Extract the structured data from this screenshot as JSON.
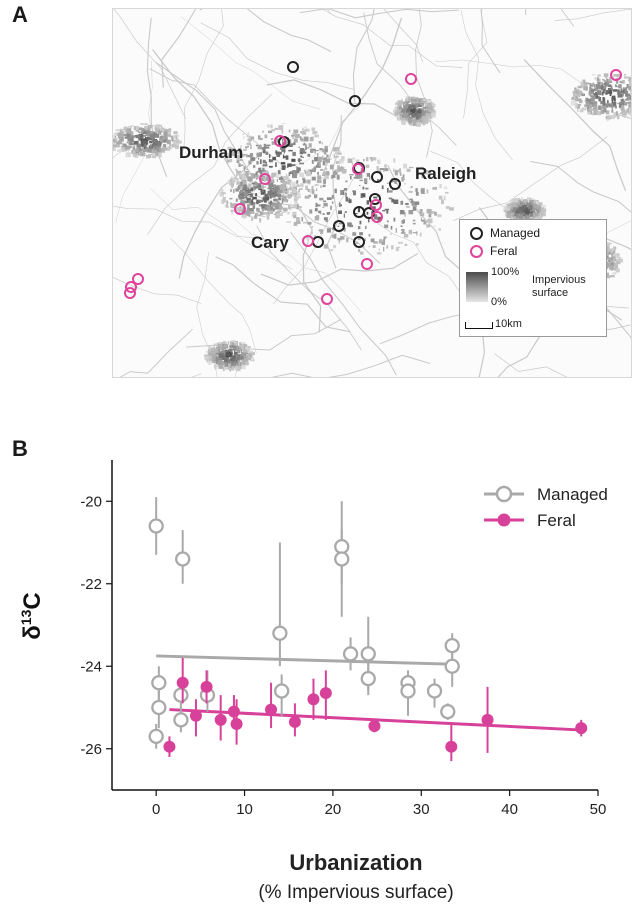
{
  "panel_a": {
    "letter": "A",
    "cities": {
      "durham": "Durham",
      "raleigh": "Raleigh",
      "cary": "Cary"
    },
    "legend": {
      "managed": "Managed",
      "feral": "Feral",
      "scale_top": "100%",
      "scale_bottom": "0%",
      "scale_label_1": "Impervious",
      "scale_label_2": "surface",
      "distance": "10km"
    },
    "colors": {
      "managed": "#222222",
      "feral": "#e0439b",
      "urban": "#555555"
    }
  },
  "panel_b": {
    "letter": "B",
    "legend": {
      "managed": "Managed",
      "feral": "Feral"
    },
    "xlabel": "Urbanization",
    "xlabel_sub": "(% Impervious surface)",
    "ylabel_main": "δ",
    "ylabel_sup": "13",
    "ylabel_tail": "C",
    "colors": {
      "managed": "#a9a9a9",
      "feral": "#d8419a"
    }
  },
  "chart_data": {
    "type": "scatter",
    "xlabel": "Urbanization (% Impervious surface)",
    "ylabel": "δ13C",
    "xlim": [
      -5,
      50
    ],
    "ylim": [
      -27,
      -19
    ],
    "x_ticks": [
      0,
      10,
      20,
      30,
      40,
      50
    ],
    "y_ticks": [
      -20,
      -22,
      -24,
      -26
    ],
    "legend_position": "top-right",
    "series": [
      {
        "name": "Managed",
        "marker": "open-circle",
        "points": [
          {
            "x": 0.0,
            "y": -20.6,
            "lo": -21.3,
            "hi": -19.9
          },
          {
            "x": 3.0,
            "y": -21.4,
            "lo": -22.0,
            "hi": -20.7
          },
          {
            "x": 0.3,
            "y": -24.4,
            "lo": -24.8,
            "hi": -24.0
          },
          {
            "x": 0.3,
            "y": -25.0,
            "lo": -25.5,
            "hi": -24.6
          },
          {
            "x": 0.0,
            "y": -25.7,
            "lo": -26.0,
            "hi": -25.4
          },
          {
            "x": 2.8,
            "y": -24.7,
            "lo": -25.0,
            "hi": -24.4
          },
          {
            "x": 2.8,
            "y": -25.3,
            "lo": -25.6,
            "hi": -25.0
          },
          {
            "x": 5.8,
            "y": -24.7,
            "lo": -25.1,
            "hi": -24.1
          },
          {
            "x": 14.0,
            "y": -23.2,
            "lo": -24.0,
            "hi": -21.0
          },
          {
            "x": 14.2,
            "y": -24.6,
            "lo": -25.2,
            "hi": -24.2
          },
          {
            "x": 21.0,
            "y": -21.1,
            "lo": -22.0,
            "hi": -20.0
          },
          {
            "x": 21.0,
            "y": -21.4,
            "lo": -22.8,
            "hi": -20.7
          },
          {
            "x": 22.0,
            "y": -23.7,
            "lo": -24.1,
            "hi": -23.3
          },
          {
            "x": 24.0,
            "y": -23.7,
            "lo": -24.6,
            "hi": -22.8
          },
          {
            "x": 24.0,
            "y": -24.3,
            "lo": -24.7,
            "hi": -23.9
          },
          {
            "x": 28.5,
            "y": -24.4,
            "lo": -24.7,
            "hi": -24.1
          },
          {
            "x": 28.5,
            "y": -24.6,
            "lo": -25.2,
            "hi": -24.2
          },
          {
            "x": 31.5,
            "y": -24.6,
            "lo": -25.0,
            "hi": -24.3
          },
          {
            "x": 33.0,
            "y": -25.1,
            "lo": -25.3,
            "hi": -24.9
          },
          {
            "x": 33.5,
            "y": -23.5,
            "lo": -23.8,
            "hi": -23.2
          },
          {
            "x": 33.5,
            "y": -24.0,
            "lo": -24.5,
            "hi": -23.6
          }
        ],
        "trend": {
          "x": [
            0,
            33.5
          ],
          "y": [
            -23.75,
            -23.95
          ]
        }
      },
      {
        "name": "Feral",
        "marker": "filled-circle",
        "points": [
          {
            "x": 1.5,
            "y": -25.95,
            "lo": -26.2,
            "hi": -25.7
          },
          {
            "x": 3.0,
            "y": -24.4,
            "lo": -24.9,
            "hi": -23.8
          },
          {
            "x": 4.5,
            "y": -25.2,
            "lo": -25.7,
            "hi": -24.8
          },
          {
            "x": 5.7,
            "y": -24.5,
            "lo": -24.9,
            "hi": -24.1
          },
          {
            "x": 7.3,
            "y": -25.3,
            "lo": -25.8,
            "hi": -24.7
          },
          {
            "x": 8.8,
            "y": -25.1,
            "lo": -25.4,
            "hi": -24.7
          },
          {
            "x": 9.1,
            "y": -25.4,
            "lo": -25.9,
            "hi": -24.8
          },
          {
            "x": 13.0,
            "y": -25.05,
            "lo": -25.5,
            "hi": -24.4
          },
          {
            "x": 15.7,
            "y": -25.35,
            "lo": -25.7,
            "hi": -24.9
          },
          {
            "x": 17.8,
            "y": -24.8,
            "lo": -25.3,
            "hi": -24.3
          },
          {
            "x": 19.2,
            "y": -24.65,
            "lo": -25.3,
            "hi": -24.1
          },
          {
            "x": 24.7,
            "y": -25.45,
            "lo": -25.6,
            "hi": -25.3
          },
          {
            "x": 33.4,
            "y": -25.95,
            "lo": -26.3,
            "hi": -25.4
          },
          {
            "x": 37.5,
            "y": -25.3,
            "lo": -26.1,
            "hi": -24.5
          },
          {
            "x": 48.1,
            "y": -25.5,
            "lo": -25.7,
            "hi": -25.3
          }
        ],
        "trend": {
          "x": [
            1.5,
            48.5
          ],
          "y": [
            -25.05,
            -25.55
          ]
        }
      }
    ]
  }
}
